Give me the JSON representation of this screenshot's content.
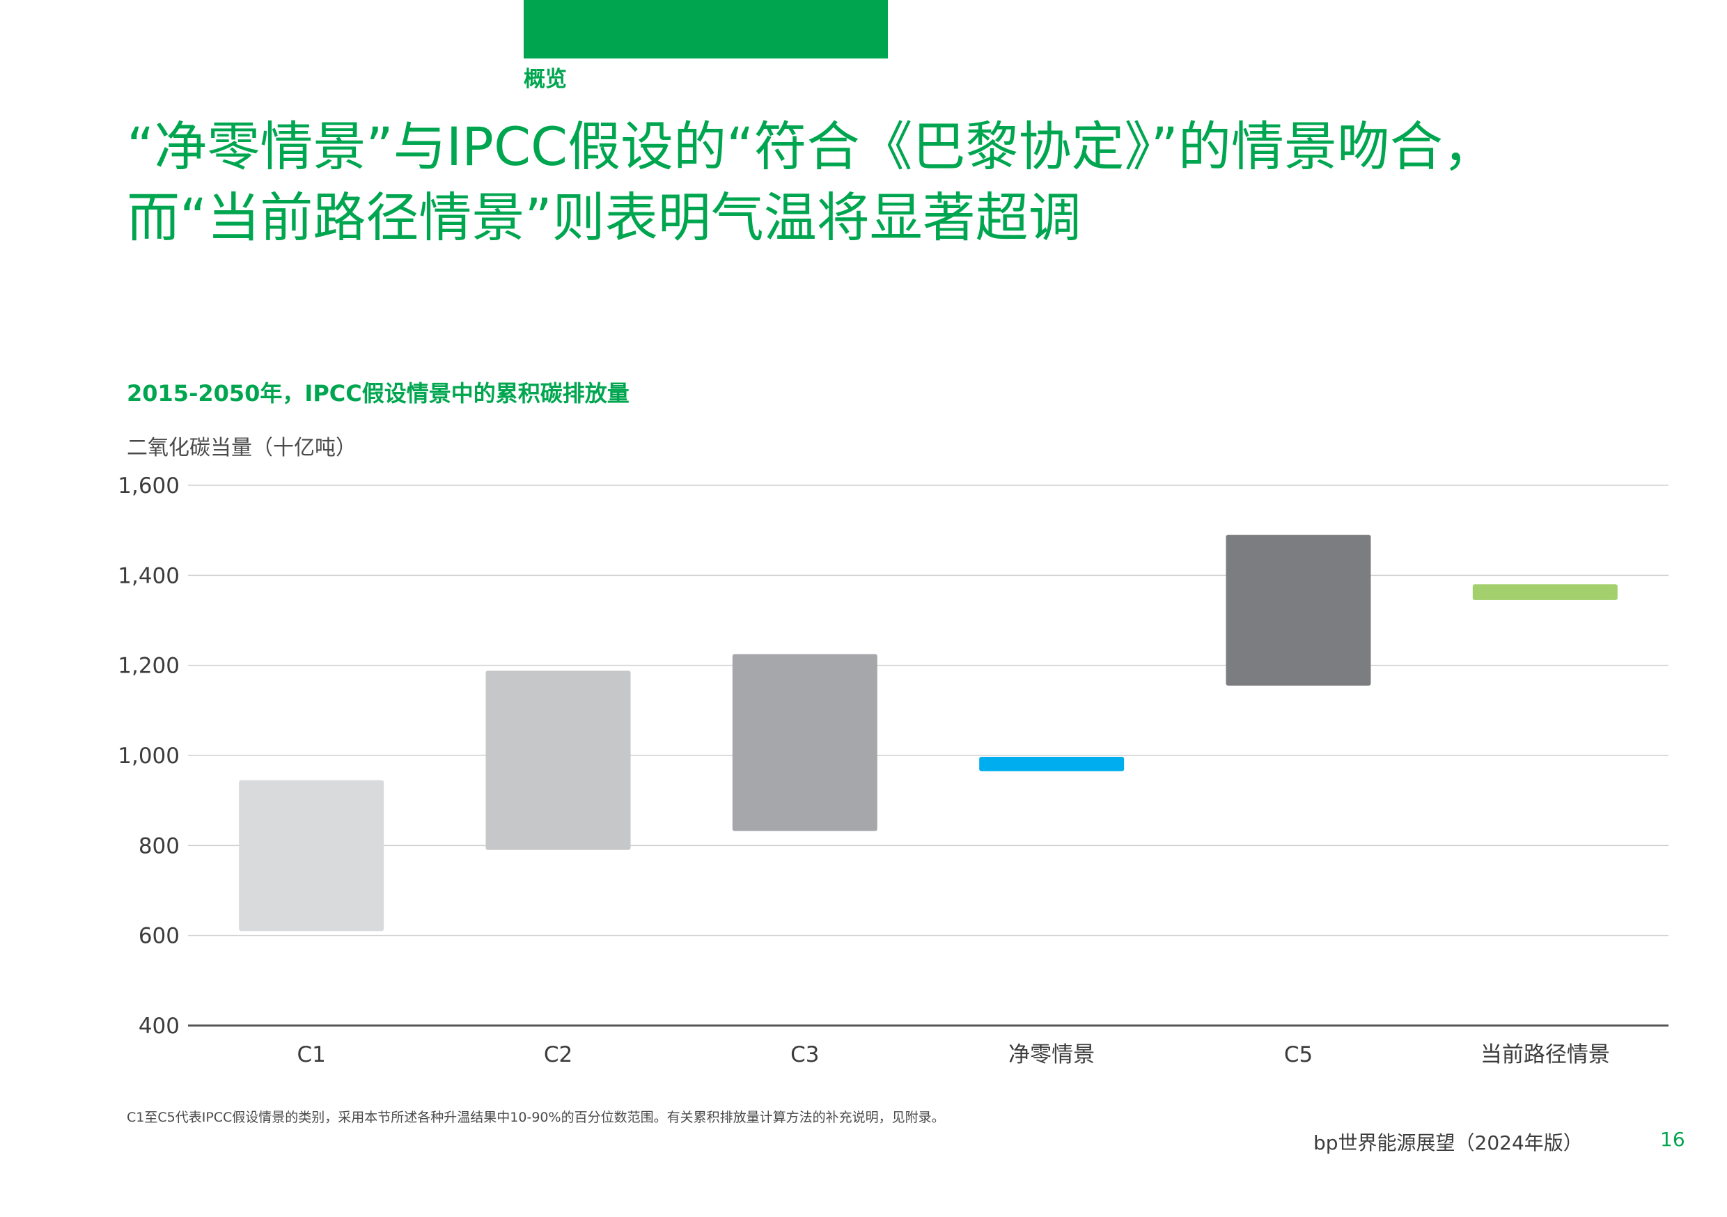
{
  "header": {
    "section": "概览",
    "headline_line1": "“净零情景”与IPCC假设的“符合《巴黎协定》”的情景吻合，",
    "headline_line2": "而“当前路径情景”则表明气温将显著超调"
  },
  "chart_data": {
    "type": "bar",
    "subtype": "floating-range",
    "title": "2015-2050年，IPCC假设情景中的累积碳排放量",
    "ylabel": "二氧化碳当量（十亿吨）",
    "xlabel": "",
    "ylim": [
      400,
      1600
    ],
    "yticks": [
      1600,
      1400,
      1200,
      1000,
      800,
      600,
      400
    ],
    "ytick_labels": [
      "1,600",
      "1,400",
      "1,200",
      "1,000",
      "800",
      "600",
      "400"
    ],
    "grid": true,
    "categories": [
      "C1",
      "C2",
      "C3",
      "净零情景",
      "C5",
      "当前路径情景"
    ],
    "ranges": [
      {
        "low": 610,
        "high": 945,
        "color": "#d9dadc"
      },
      {
        "low": 790,
        "high": 1188,
        "color": "#c6c7c9"
      },
      {
        "low": 832,
        "high": 1225,
        "color": "#a6a7aa"
      },
      {
        "low": 965,
        "high": 997,
        "color": "#00aeef"
      },
      {
        "low": 1155,
        "high": 1490,
        "color": "#7c7d80"
      },
      {
        "low": 1345,
        "high": 1380,
        "color": "#a3cf6d"
      }
    ]
  },
  "footer": {
    "footnote": "C1至C5代表IPCC假设情景的类别，采用本节所述各种升温结果中10-90%的百分位数范围。有关累积排放量计算方法的补充说明，见附录。",
    "publication": "bp世界能源展望（2024年版）",
    "page_number": "16"
  },
  "colors": {
    "brand_green": "#00a64f",
    "gridline": "#d0d0d0",
    "axis": "#555555"
  }
}
